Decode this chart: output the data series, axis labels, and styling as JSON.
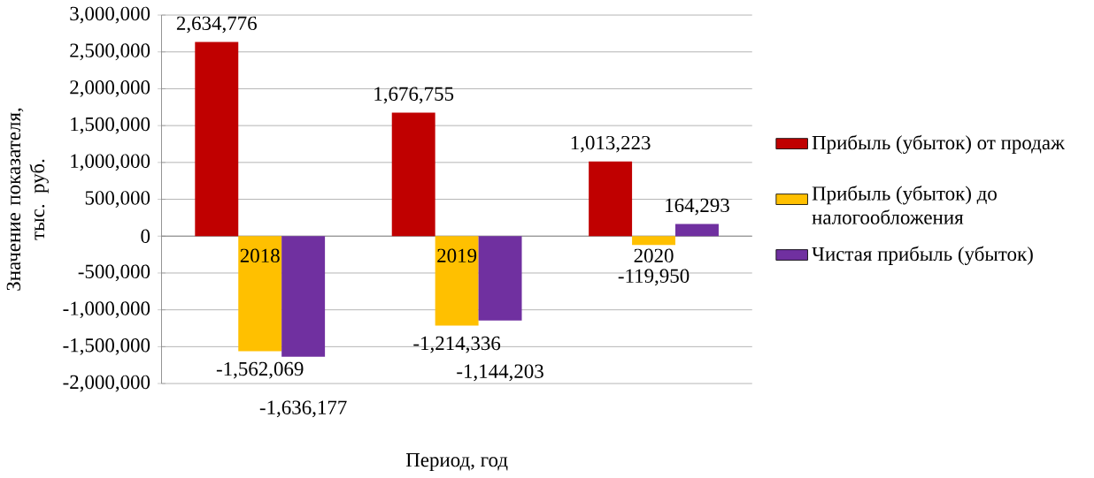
{
  "chart_data": {
    "type": "bar",
    "categories": [
      "2018",
      "2019",
      "2020"
    ],
    "xlabel": "Период, год",
    "ylabel": "Значение показателя, тыс. руб.",
    "ylim": [
      -2000000,
      3000000
    ],
    "yticks": [
      {
        "value": -2000000,
        "label": "-2,000,000"
      },
      {
        "value": -1500000,
        "label": "-1,500,000"
      },
      {
        "value": -1000000,
        "label": "-1,000,000"
      },
      {
        "value": -500000,
        "label": "-500,000"
      },
      0,
      {
        "value": 500000,
        "label": "500,000"
      },
      {
        "value": 1000000,
        "label": "1,000,000"
      },
      {
        "value": 1500000,
        "label": "1,500,000"
      },
      {
        "value": 2000000,
        "label": "2,000,000"
      },
      {
        "value": 2500000,
        "label": "2,500,000"
      },
      {
        "value": 3000000,
        "label": "3,000,000"
      }
    ],
    "grid": "y",
    "legend": "right",
    "series": [
      {
        "name": "Прибыль (убыток) от продаж",
        "color": "#c00000",
        "values": [
          2634776,
          1676755,
          1013223
        ],
        "value_labels": [
          "2,634,776",
          "1,676,755",
          "1,013,223"
        ]
      },
      {
        "name": "Прибыль (убыток) до налогообложения",
        "color": "#ffc000",
        "values": [
          -1562069,
          -1214336,
          -119950
        ],
        "value_labels": [
          "-1,562,069",
          "-1,214,336",
          "-119,950"
        ]
      },
      {
        "name": "Чистая прибыль (убыток)",
        "color": "#7030a0",
        "values": [
          -1636177,
          -1144203,
          164293
        ],
        "value_labels": [
          "-1,636,177",
          "-1,144,203",
          "164,293"
        ]
      }
    ]
  }
}
